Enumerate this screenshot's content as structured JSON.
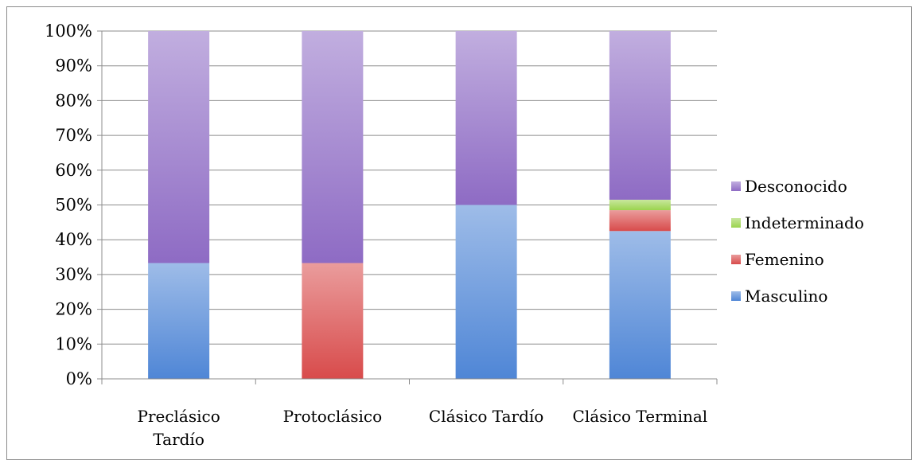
{
  "chart_data": {
    "type": "bar",
    "stacked": true,
    "normalized": true,
    "title": "",
    "xlabel": "",
    "ylabel": "",
    "ylim": [
      0,
      100
    ],
    "y_ticks": [
      "0%",
      "10%",
      "20%",
      "30%",
      "40%",
      "50%",
      "60%",
      "70%",
      "80%",
      "90%",
      "100%"
    ],
    "grid": true,
    "legend_position": "right",
    "categories": [
      [
        "Preclásico",
        "Tardío"
      ],
      [
        "Protoclásico"
      ],
      [
        "Clásico Tardío"
      ],
      [
        "Clásico Terminal"
      ]
    ],
    "series": [
      {
        "name": "Masculino",
        "color": "#4f86d6",
        "values": [
          33.3,
          0,
          50,
          42.5
        ]
      },
      {
        "name": "Femenino",
        "color": "#d84b4b",
        "values": [
          0,
          33.3,
          0,
          6
        ]
      },
      {
        "name": "Indeterminado",
        "color": "#9bd44e",
        "values": [
          0,
          0,
          0,
          3
        ]
      },
      {
        "name": "Desconocido",
        "color": "#8e6bc4",
        "values": [
          66.7,
          66.7,
          50,
          48.5
        ]
      }
    ],
    "legend_order": [
      "Desconocido",
      "Indeterminado",
      "Femenino",
      "Masculino"
    ]
  }
}
